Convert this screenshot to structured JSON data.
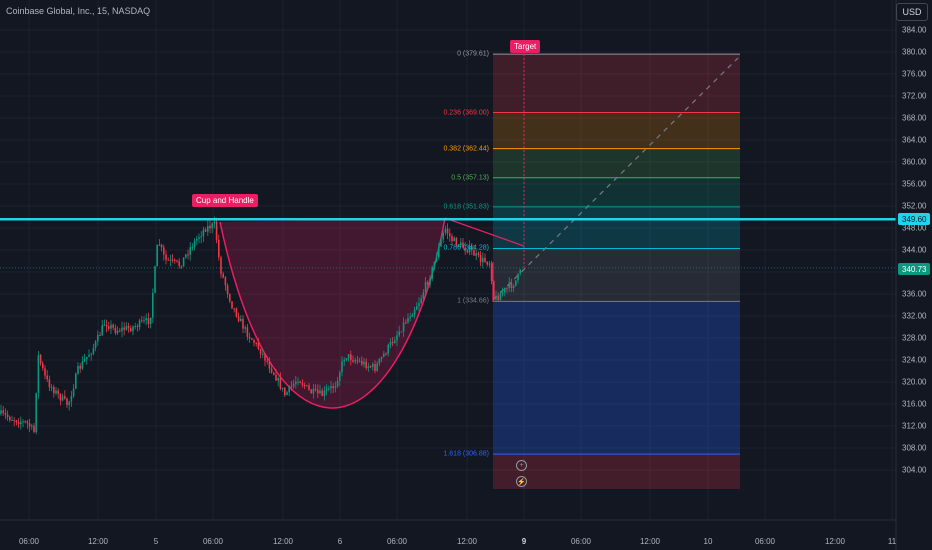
{
  "header": {
    "title": "Coinbase Global, Inc., 15, NASDAQ",
    "currency": "USD"
  },
  "annotations": {
    "pattern_label": "Cup and Handle",
    "target_label": "Target"
  },
  "price_axis": {
    "ticks": [
      "384.00",
      "380.00",
      "376.00",
      "372.00",
      "368.00",
      "364.00",
      "360.00",
      "356.00",
      "352.00",
      "348.00",
      "344.00",
      "340.00",
      "336.00",
      "332.00",
      "328.00",
      "324.00",
      "320.00",
      "316.00",
      "312.00",
      "308.00",
      "304.00"
    ],
    "resistance_badge": "349.60",
    "last_price_badge": "340.73"
  },
  "time_axis": {
    "ticks": [
      {
        "label": "06:00",
        "bold": false
      },
      {
        "label": "12:00",
        "bold": false
      },
      {
        "label": "5",
        "bold": false
      },
      {
        "label": "06:00",
        "bold": false
      },
      {
        "label": "12:00",
        "bold": false
      },
      {
        "label": "6",
        "bold": false
      },
      {
        "label": "06:00",
        "bold": false
      },
      {
        "label": "12:00",
        "bold": false
      },
      {
        "label": "9",
        "bold": true
      },
      {
        "label": "06:00",
        "bold": false
      },
      {
        "label": "12:00",
        "bold": false
      },
      {
        "label": "10",
        "bold": false
      },
      {
        "label": "06:00",
        "bold": false
      },
      {
        "label": "12:00",
        "bold": false
      },
      {
        "label": "11",
        "bold": false
      }
    ]
  },
  "fibonacci": [
    {
      "ratio": "0",
      "price": "379.61",
      "label": "0 (379.61)",
      "color": "#9598a1"
    },
    {
      "ratio": "0.236",
      "price": "369.00",
      "label": "0.236 (369.00)",
      "color": "#f23645"
    },
    {
      "ratio": "0.382",
      "price": "362.44",
      "label": "0.382 (362.44)",
      "color": "#ff9800"
    },
    {
      "ratio": "0.5",
      "price": "357.13",
      "label": "0.5 (357.13)",
      "color": "#4caf50"
    },
    {
      "ratio": "0.618",
      "price": "351.83",
      "label": "0.618 (351.83)",
      "color": "#089981"
    },
    {
      "ratio": "0.786",
      "price": "344.28",
      "label": "0.786 (344.28)",
      "color": "#00bcd4"
    },
    {
      "ratio": "1",
      "price": "334.66",
      "label": "1 (334.66)",
      "color": "#787b86"
    },
    {
      "ratio": "1.618",
      "price": "306.88",
      "label": "1.618 (306.88)",
      "color": "#2962ff"
    }
  ],
  "colors": {
    "up": "#089981",
    "down": "#f23645",
    "resistance": "#22d3ee",
    "cup": "#e91e63",
    "background": "#131722"
  }
}
